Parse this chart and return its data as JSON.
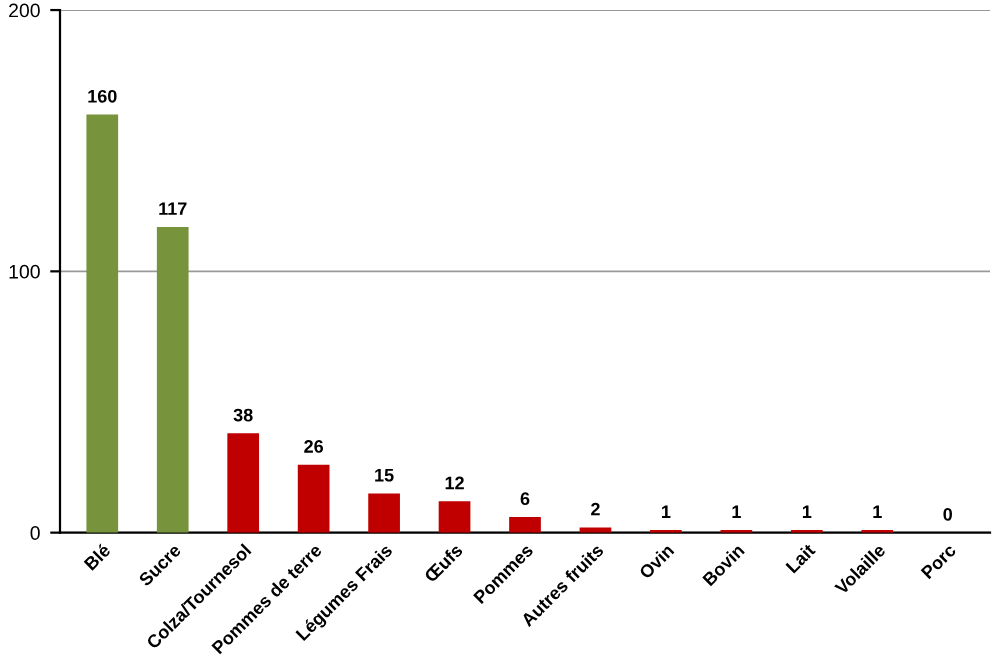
{
  "chart_data": {
    "type": "bar",
    "categories": [
      "Blé",
      "Sucre",
      "Colza/Tournesol",
      "Pommes de terre",
      "Légumes Frais",
      "Œufs",
      "Pommes",
      "Autres fruits",
      "Ovin",
      "Bovin",
      "Lait",
      "Volaille",
      "Porc"
    ],
    "values": [
      160,
      117,
      38,
      26,
      15,
      12,
      6,
      2,
      1,
      1,
      1,
      1,
      0
    ],
    "colors": [
      "#77933c",
      "#77933c",
      "#c00000",
      "#c00000",
      "#c00000",
      "#c00000",
      "#c00000",
      "#c00000",
      "#c00000",
      "#c00000",
      "#c00000",
      "#c00000",
      "#c00000"
    ],
    "ylim": [
      0,
      200
    ],
    "yticks": [
      0,
      100,
      200
    ],
    "grid": "y",
    "data_labels": true
  }
}
